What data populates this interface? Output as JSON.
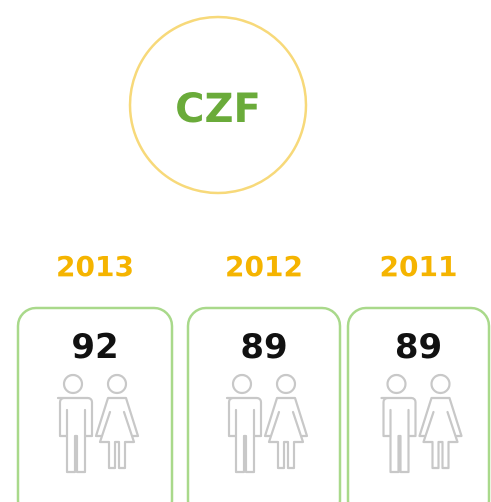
{
  "badge": "CZF",
  "items": [
    {
      "year": "2013",
      "value": 92
    },
    {
      "year": "2012",
      "value": 89
    },
    {
      "year": "2011",
      "value": 89
    }
  ]
}
